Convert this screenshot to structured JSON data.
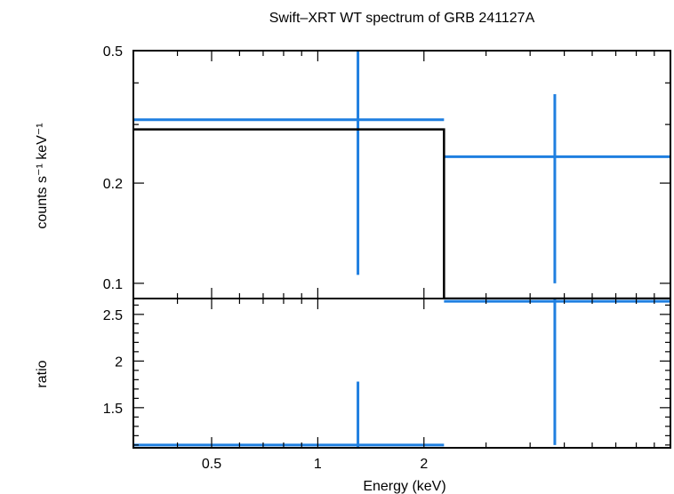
{
  "chart_data": [
    {
      "type": "scatter",
      "title": "Swift–XRT WT spectrum of GRB 241127A",
      "xlabel": "",
      "ylabel": "counts s⁻¹ keV⁻¹",
      "xscale": "log",
      "yscale": "log",
      "xlim": [
        0.3,
        10
      ],
      "ylim": [
        0.09,
        0.5
      ],
      "y_tick_labels": [
        "0.1",
        "0.2",
        "0.5"
      ],
      "y_ticks": [
        0.1,
        0.2,
        0.5
      ],
      "grid": false,
      "series": [
        {
          "kind": "data",
          "color": "#1f7fe0",
          "points": [
            {
              "x": 1.3,
              "xlo": 0.3,
              "xhi": 2.28,
              "y": 0.31,
              "ylo": 0.106,
              "yhi": 0.5
            },
            {
              "x": 4.7,
              "xlo": 2.28,
              "xhi": 10,
              "y": 0.24,
              "ylo": 0.1,
              "yhi": 0.37
            }
          ]
        },
        {
          "kind": "model",
          "color": "#000000",
          "steps": [
            {
              "xlo": 0.3,
              "xhi": 2.28,
              "y": 0.29
            },
            {
              "xlo": 2.28,
              "xhi": 10,
              "y": 0.09
            }
          ]
        }
      ]
    },
    {
      "type": "scatter",
      "title": "",
      "xlabel": "Energy (keV)",
      "ylabel": "ratio",
      "xscale": "log",
      "xlim": [
        0.3,
        10
      ],
      "ylim": [
        1.07,
        2.67
      ],
      "x_tick_labels": [
        "0.5",
        "1",
        "2"
      ],
      "x_ticks": [
        0.5,
        1,
        2
      ],
      "y_tick_labels": [
        "1.5",
        "2",
        "2.5"
      ],
      "y_ticks": [
        1.5,
        2,
        2.5
      ],
      "grid": false,
      "series": [
        {
          "kind": "data",
          "color": "#1f7fe0",
          "points": [
            {
              "x": 1.3,
              "xlo": 0.3,
              "xhi": 2.28,
              "y": 1.1,
              "ylo": 1.07,
              "yhi": 1.78
            },
            {
              "x": 4.7,
              "xlo": 2.28,
              "xhi": 10,
              "y": 2.64,
              "ylo": 1.1,
              "yhi": 2.67
            }
          ]
        }
      ]
    }
  ]
}
